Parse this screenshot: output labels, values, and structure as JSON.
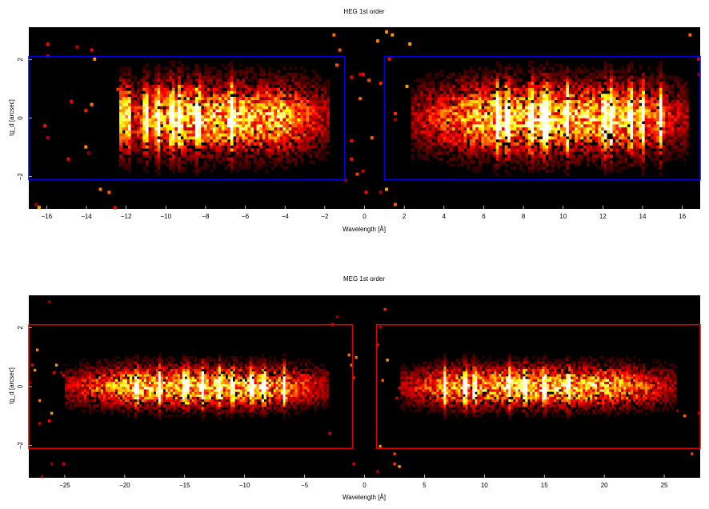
{
  "chart_data": [
    {
      "type": "heatmap",
      "title": "HEG 1st order",
      "xlabel": "Wavelength [Å]",
      "ylabel": "tg_d [arcsec]",
      "xlim": [
        -16.9,
        16.9
      ],
      "ylim": [
        -3.1,
        3.1
      ],
      "xticks": [
        -16,
        -14,
        -12,
        -10,
        -8,
        -6,
        -4,
        -2,
        0,
        2,
        4,
        6,
        8,
        10,
        12,
        14,
        16
      ],
      "xtick_labels": [
        "−16",
        "−14",
        "−12",
        "−10",
        "−8",
        "−6",
        "−4",
        "−2",
        "0",
        "2",
        "4",
        "6",
        "8",
        "10",
        "12",
        "14",
        "16"
      ],
      "yticks": [
        -2,
        0,
        2
      ],
      "ytick_labels": [
        "−2",
        "0",
        "2"
      ],
      "colormap": "hot",
      "regions": [
        {
          "x": [
            -17.0,
            -1.0
          ],
          "y": [
            -2.1,
            2.1
          ],
          "color": "#0000dd"
        },
        {
          "x": [
            1.0,
            17.0
          ],
          "y": [
            -2.1,
            2.1
          ],
          "color": "#0000dd"
        }
      ],
      "band_half_width": 1.05,
      "extent": [
        [
          -12.4,
          -1.7
        ],
        [
          2.4,
          16.3
        ]
      ],
      "lines": [
        -12.2,
        -11.9,
        -11.0,
        -10.4,
        -9.7,
        -9.3,
        -8.4,
        -6.7,
        6.7,
        7.2,
        8.4,
        9.0,
        9.2,
        10.2,
        12.1,
        12.4,
        13.4,
        14.0,
        14.9
      ]
    },
    {
      "type": "heatmap",
      "title": "MEG 1st order",
      "xlabel": "Wavelength [Å]",
      "ylabel": "tg_d [arcsec]",
      "xlim": [
        -28,
        28
      ],
      "ylim": [
        -3.1,
        3.1
      ],
      "xticks": [
        -25,
        -20,
        -15,
        -10,
        -5,
        0,
        5,
        10,
        15,
        20,
        25
      ],
      "xtick_labels": [
        "−25",
        "−20",
        "−15",
        "−10",
        "−5",
        "0",
        "5",
        "10",
        "15",
        "20",
        "25"
      ],
      "yticks": [
        -2,
        0,
        2
      ],
      "ytick_labels": [
        "−2",
        "0",
        "2"
      ],
      "colormap": "hot",
      "regions": [
        {
          "x": [
            -28.5,
            -1.0
          ],
          "y": [
            -2.1,
            2.1
          ],
          "color": "#dd0000"
        },
        {
          "x": [
            1.0,
            28.5
          ],
          "y": [
            -2.1,
            2.1
          ],
          "color": "#dd0000"
        }
      ],
      "band_half_width": 0.6,
      "extent": [
        [
          -25,
          -3
        ],
        [
          3,
          26
        ]
      ],
      "lines": [
        -19.0,
        -17.1,
        -15.0,
        -14.8,
        -13.5,
        -12.1,
        -11.0,
        -9.4,
        -8.4,
        -6.7,
        6.7,
        8.4,
        9.2,
        12.1,
        13.4,
        15.0,
        17.0
      ]
    }
  ]
}
